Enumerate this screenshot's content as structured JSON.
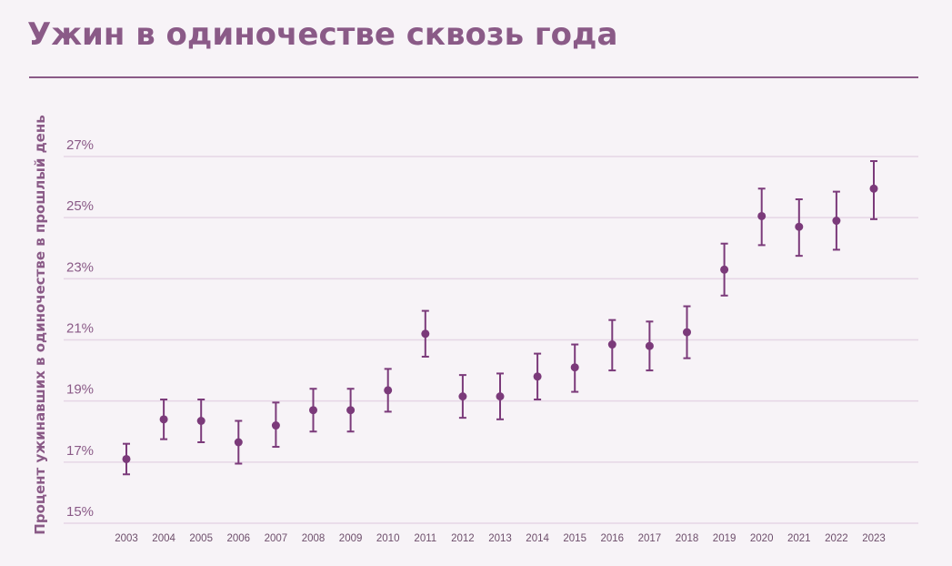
{
  "title": "Ужин в одиночестве сквозь года",
  "colors": {
    "title": "#8a5a87",
    "marker": "#7b3a7a",
    "grid": "#e6d6e6",
    "background": "#f7f3f7"
  },
  "chart_data": {
    "type": "scatter",
    "title": "Ужин в одиночестве сквозь года",
    "ylabel": "Процент ужинавших в одиночестве в прошлый день",
    "xlabel": "",
    "ylim": [
      15,
      27
    ],
    "yticks": [
      "15%",
      "17%",
      "19%",
      "21%",
      "23%",
      "25%",
      "27%"
    ],
    "grid": true,
    "categories": [
      "2003",
      "2004",
      "2005",
      "2006",
      "2007",
      "2008",
      "2009",
      "2010",
      "2011",
      "2012",
      "2013",
      "2014",
      "2015",
      "2016",
      "2017",
      "2018",
      "2019",
      "2020",
      "2021",
      "2022",
      "2023"
    ],
    "values": [
      17.1,
      18.4,
      18.35,
      17.65,
      18.2,
      18.7,
      18.7,
      19.35,
      21.2,
      19.15,
      19.15,
      19.8,
      20.1,
      20.85,
      20.8,
      21.25,
      23.3,
      25.05,
      24.7,
      24.9,
      25.95
    ],
    "error_low": [
      16.6,
      17.75,
      17.65,
      16.95,
      17.5,
      18.0,
      18.0,
      18.65,
      20.45,
      18.45,
      18.4,
      19.05,
      19.3,
      20.0,
      20.0,
      20.4,
      22.45,
      24.1,
      23.75,
      23.95,
      24.95
    ],
    "error_high": [
      17.6,
      19.05,
      19.05,
      18.35,
      18.95,
      19.4,
      19.4,
      20.05,
      21.95,
      19.85,
      19.9,
      20.55,
      20.85,
      21.65,
      21.6,
      22.1,
      24.15,
      25.95,
      25.6,
      25.85,
      26.85
    ]
  }
}
